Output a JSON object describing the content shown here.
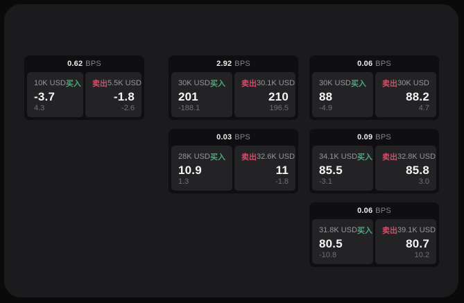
{
  "labels": {
    "bps_unit": "BPS",
    "buy": "买入",
    "sell": "卖出"
  },
  "colors": {
    "buy": "#4aa97a",
    "sell": "#d04e68",
    "panel_bg": "#1b1b1d",
    "card_bg": "#0f0f11",
    "tile_bg": "#232326"
  },
  "cards": [
    {
      "bps": "0.62",
      "buy": {
        "amount": "10K USD",
        "value": "-3.7",
        "delta": "4.3"
      },
      "sell": {
        "amount": "5.5K USD",
        "value": "-1.8",
        "delta": "-2.6"
      }
    },
    {
      "bps": "2.92",
      "buy": {
        "amount": "30K USD",
        "value": "201",
        "delta": "-188.1"
      },
      "sell": {
        "amount": "30.1K USD",
        "value": "210",
        "delta": "196.5"
      }
    },
    {
      "bps": "0.06",
      "buy": {
        "amount": "30K USD",
        "value": "88",
        "delta": "-4.9"
      },
      "sell": {
        "amount": "30K USD",
        "value": "88.2",
        "delta": "4.7"
      }
    },
    {
      "bps": "0.03",
      "buy": {
        "amount": "28K USD",
        "value": "10.9",
        "delta": "1.3"
      },
      "sell": {
        "amount": "32.6K USD",
        "value": "11",
        "delta": "-1.8"
      }
    },
    {
      "bps": "0.09",
      "buy": {
        "amount": "34.1K USD",
        "value": "85.5",
        "delta": "-3.1"
      },
      "sell": {
        "amount": "32.8K USD",
        "value": "85.8",
        "delta": "3.0"
      }
    },
    {
      "bps": "0.06",
      "buy": {
        "amount": "31.8K USD",
        "value": "80.5",
        "delta": "-10.8"
      },
      "sell": {
        "amount": "39.1K USD",
        "value": "80.7",
        "delta": "10.2"
      }
    }
  ]
}
